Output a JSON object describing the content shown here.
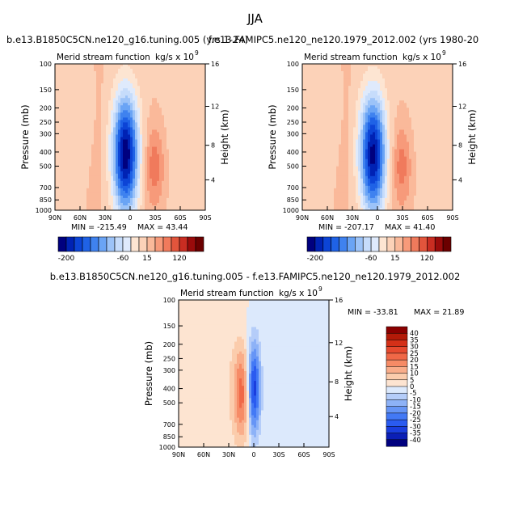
{
  "figure": {
    "title": "JJA",
    "top_left_title": "b.e13.B1850C5CN.ne120_g16.tuning.005 (yrs 1-24)",
    "top_right_title": "f.e13.FAMIPC5.ne120_ne120.1979_2012.002 (yrs 1980-20",
    "bottom_title": "b.e13.B1850C5CN.ne120_g16.tuning.005 - f.e13.FAMIPC5.ne120_ne120.1979_2012.002"
  },
  "colors": {
    "palette_full": [
      "#00007f",
      "#0022b4",
      "#0c44d6",
      "#1f62e6",
      "#3f82ef",
      "#6aa4f5",
      "#9cc3f8",
      "#c6dcfb",
      "#dfeafc",
      "#fde5d2",
      "#fcd2b8",
      "#fab99a",
      "#f79a7a",
      "#f07a5c",
      "#e2553c",
      "#c92d22",
      "#9a0b0b",
      "#6b0000"
    ],
    "palette_diff": [
      "#00007f",
      "#0b1fb6",
      "#1a3ede",
      "#2a5bf0",
      "#4379f5",
      "#6695f6",
      "#8db2f7",
      "#b5cdf9",
      "#dce9fc",
      "#fde4d1",
      "#fbccac",
      "#f9ad8a",
      "#f68b66",
      "#f06847",
      "#e64a2f",
      "#d43018",
      "#b31a08",
      "#8a0000"
    ]
  },
  "chart_data": [
    {
      "type": "contour",
      "title": "b.e13.B1850C5CN.ne120_g16.tuning.005 (yrs 1-24)",
      "subtitle_left": "Merid stream function",
      "subtitle_right": "kg/s x 10",
      "units_exponent": "9",
      "ylabel": "Pressure (mb)",
      "ylabel_right": "Height (km)",
      "yticks": [
        "100",
        "150",
        "200",
        "250",
        "300",
        "400",
        "500",
        "700",
        "850",
        "1000"
      ],
      "yticks_right": [
        "16",
        "12",
        "8",
        "4"
      ],
      "xticks": [
        "90N",
        "60N",
        "30N",
        "0",
        "30S",
        "60S",
        "90S"
      ],
      "min_label": "MIN = -215.49",
      "max_label": "MAX = 43.44",
      "min": -215.49,
      "max": 43.44,
      "colorbar_labels": [
        "-200",
        "-60",
        "15",
        "120"
      ]
    },
    {
      "type": "contour",
      "title": "f.e13.FAMIPC5.ne120_ne120.1979_2012.002 (yrs 1980-20",
      "subtitle_left": "Merid stream function",
      "subtitle_right": "kg/s x 10",
      "units_exponent": "9",
      "ylabel": "Pressure (mb)",
      "ylabel_right": "Height (km)",
      "yticks": [
        "100",
        "150",
        "200",
        "250",
        "300",
        "400",
        "500",
        "700",
        "850",
        "1000"
      ],
      "yticks_right": [
        "16",
        "12",
        "8",
        "4"
      ],
      "xticks": [
        "90N",
        "60N",
        "30N",
        "0",
        "30S",
        "60S",
        "90S"
      ],
      "min_label": "MIN = -207.17",
      "max_label": "MAX = 41.40",
      "min": -207.17,
      "max": 41.4,
      "colorbar_labels": [
        "-200",
        "-60",
        "15",
        "120"
      ]
    },
    {
      "type": "contour",
      "title": "b.e13.B1850C5CN.ne120_g16.tuning.005 - f.e13.FAMIPC5.ne120_ne120.1979_2012.002",
      "subtitle_left": "Merid stream function",
      "subtitle_right": "kg/s x 10",
      "units_exponent": "9",
      "ylabel": "Pressure (mb)",
      "ylabel_right": "Height (km)",
      "yticks": [
        "100",
        "150",
        "200",
        "250",
        "300",
        "400",
        "500",
        "700",
        "850",
        "1000"
      ],
      "yticks_right": [
        "16",
        "12",
        "8",
        "4"
      ],
      "xticks": [
        "90N",
        "60N",
        "30N",
        "0",
        "30S",
        "60S",
        "90S"
      ],
      "min_label": "MIN = -33.81",
      "max_label": "MAX = 21.89",
      "min": -33.81,
      "max": 21.89,
      "colorbar_labels": [
        "40",
        "35",
        "30",
        "25",
        "20",
        "15",
        "10",
        "5",
        "0",
        "-5",
        "-10",
        "-15",
        "-20",
        "-25",
        "-30",
        "-35",
        "-40"
      ]
    }
  ]
}
